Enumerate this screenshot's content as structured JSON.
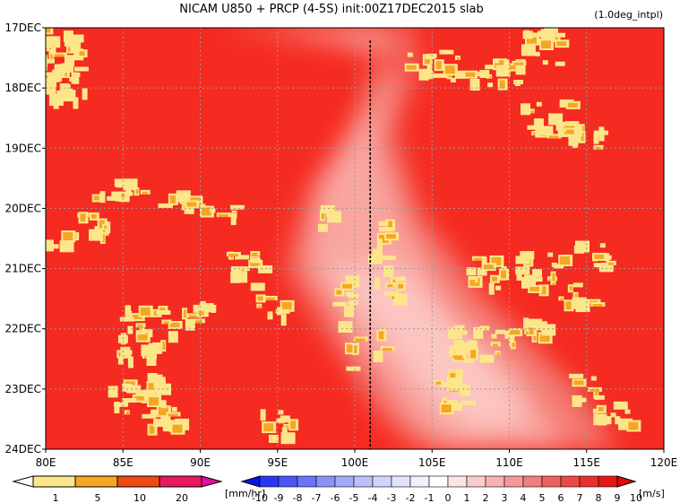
{
  "chart_data": {
    "type": "heatmap",
    "title": "NICAM   U850 + PRCP (4-5S) init:00Z17DEC2015 slab",
    "subtitle": "(1.0deg_intpl)",
    "x_ticks": [
      "80E",
      "85E",
      "90E",
      "95E",
      "100E",
      "105E",
      "110E",
      "115E",
      "120E"
    ],
    "x_tick_values": [
      80,
      85,
      90,
      95,
      100,
      105,
      110,
      115,
      120
    ],
    "xlim": [
      80,
      120
    ],
    "y_ticks": [
      "17DEC",
      "18DEC",
      "19DEC",
      "20DEC",
      "21DEC",
      "22DEC",
      "23DEC",
      "24DEC"
    ],
    "y_tick_values": [
      17,
      18,
      19,
      20,
      21,
      22,
      23,
      24
    ],
    "ylim": [
      17,
      24
    ],
    "grid": true,
    "reference_line_x": 101,
    "prcp_colorbar": {
      "labels": [
        "1",
        "5",
        "10",
        "20"
      ],
      "unit": "[mm/hr]",
      "colors": [
        "#ffffff",
        "#fde68a",
        "#f5a623",
        "#f04a12",
        "#e8195f",
        "#e0119a"
      ]
    },
    "u850_colorbar": {
      "labels": [
        "-10",
        "-9",
        "-8",
        "-7",
        "-6",
        "-5",
        "-4",
        "-3",
        "-2",
        "-1",
        "0",
        "1",
        "2",
        "3",
        "4",
        "5",
        "6",
        "7",
        "8",
        "9",
        "10"
      ],
      "unit": "[m/s]",
      "colors": [
        "#0a14e6",
        "#2a36f0",
        "#4a56f2",
        "#6a74f4",
        "#8a92f6",
        "#a4aaf8",
        "#bcc0fa",
        "#d0d3fb",
        "#e2e4fd",
        "#f0f1fe",
        "#ffffff",
        "#fde4e4",
        "#fbcccc",
        "#f8b2b2",
        "#f59898",
        "#f27d7d",
        "#ee6262",
        "#eb4848",
        "#e83030",
        "#e51818",
        "#e00808"
      ]
    },
    "wind_field": {
      "description": "U850 shading; weaker westerlies in a band from 95E-100E on 21DEC to 105E-112E on 23DEC-24DEC",
      "dominant_value": 10
    },
    "colors": {
      "strong_wind": "#f52a20",
      "weak_wind": "#fab8b4",
      "prcp_light": "#fde68a",
      "prcp_moderate": "#f5a623"
    }
  }
}
